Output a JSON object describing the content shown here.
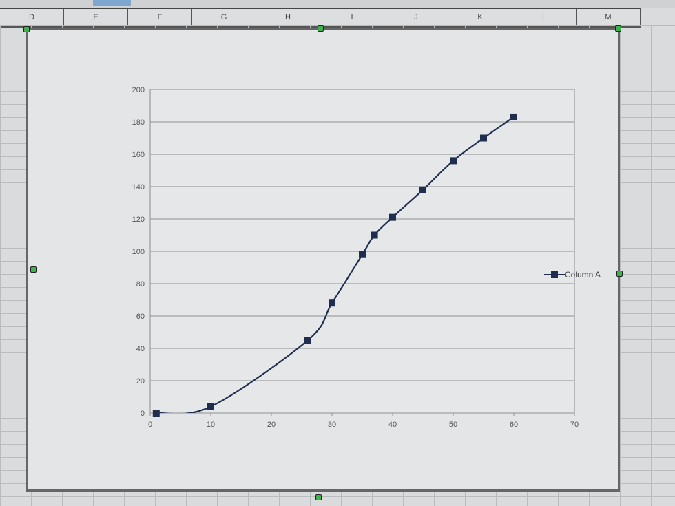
{
  "spreadsheet": {
    "column_headers": [
      "D",
      "E",
      "F",
      "G",
      "H",
      "I",
      "J",
      "K",
      "L",
      "M"
    ]
  },
  "chart_data": {
    "type": "line",
    "smooth": true,
    "marker": "square",
    "x": [
      1,
      10,
      26,
      30,
      35,
      37,
      40,
      45,
      50,
      55,
      60
    ],
    "series": [
      {
        "name": "Column A",
        "values": [
          0,
          4,
          45,
          68,
          98,
          110,
          121,
          138,
          156,
          170,
          183
        ],
        "color": "#1f2d4f"
      }
    ],
    "xlim": [
      0,
      70
    ],
    "ylim": [
      0,
      200
    ],
    "xticks": [
      "0",
      "10",
      "20",
      "30",
      "40",
      "50",
      "60",
      "70"
    ],
    "yticks": [
      "0",
      "20",
      "40",
      "60",
      "80",
      "100",
      "120",
      "140",
      "160",
      "180",
      "200"
    ],
    "grid": "horizontal",
    "legend_position": "right",
    "title": "",
    "xlabel": "",
    "ylabel": ""
  }
}
